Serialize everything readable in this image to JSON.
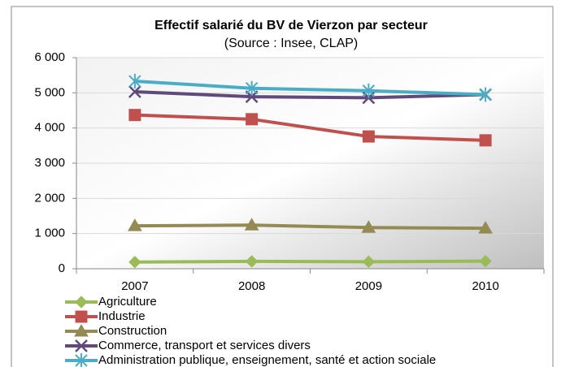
{
  "chart_data": {
    "type": "line",
    "title": "Effectif salarié du BV de Vierzon par secteur",
    "subtitle": "(Source : Insee, CLAP)",
    "categories": [
      "2007",
      "2008",
      "2009",
      "2010"
    ],
    "ylim": [
      0,
      6000
    ],
    "yticks": [
      0,
      {
        "value": 1000,
        "label": "1 000"
      },
      {
        "value": 2000,
        "label": "2 000"
      },
      {
        "value": 3000,
        "label": "3 000"
      },
      {
        "value": 4000,
        "label": "4 000"
      },
      {
        "value": 5000,
        "label": "5 000"
      },
      {
        "value": 6000,
        "label": "6 000"
      }
    ],
    "grid": true,
    "legend": "bottom",
    "series": [
      {
        "name": "Agriculture",
        "color": "#9bbb59",
        "marker": "diamond",
        "values": [
          190,
          210,
          200,
          215
        ]
      },
      {
        "name": "Industrie",
        "color": "#c0504d",
        "marker": "square",
        "values": [
          4370,
          4250,
          3760,
          3650
        ]
      },
      {
        "name": "Construction",
        "color": "#948a54",
        "marker": "triangle",
        "values": [
          1220,
          1240,
          1170,
          1150
        ]
      },
      {
        "name": "Commerce, transport et services divers",
        "color": "#604a7b",
        "marker": "x",
        "values": [
          5030,
          4890,
          4860,
          4950
        ]
      },
      {
        "name": "Administration publique, enseignement, santé et action sociale",
        "color": "#4bacc6",
        "marker": "star",
        "values": [
          5330,
          5130,
          5060,
          4950
        ]
      }
    ]
  }
}
